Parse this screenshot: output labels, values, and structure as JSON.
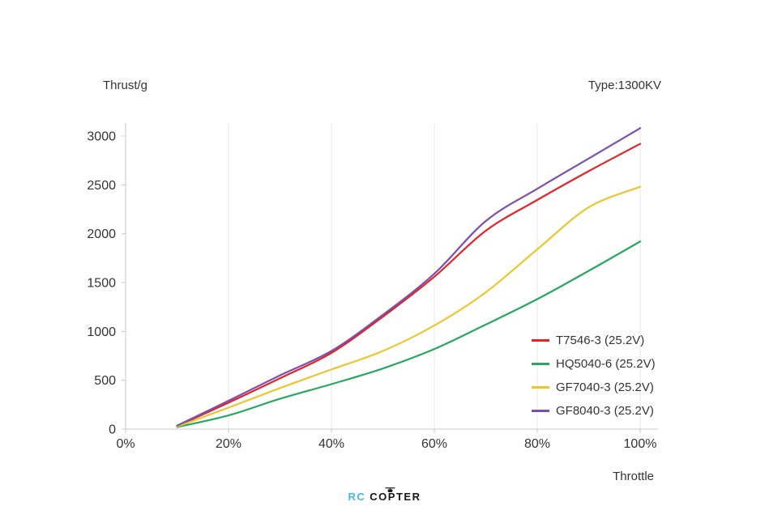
{
  "header": {
    "y_axis_title": "Thrust/g",
    "type_label": "Type:1300KV"
  },
  "footer": {
    "x_axis_title": "Throttle"
  },
  "watermark": {
    "rc": "RC",
    "copter": "COPTER"
  },
  "chart_data": {
    "type": "line",
    "title": "",
    "xlabel": "Throttle",
    "ylabel": "Thrust/g",
    "xlim": [
      0,
      100
    ],
    "ylim": [
      0,
      3000
    ],
    "x_ticks": [
      "0%",
      "20%",
      "40%",
      "60%",
      "80%",
      "100%"
    ],
    "x_tick_values": [
      0,
      20,
      40,
      60,
      80,
      100
    ],
    "y_ticks": [
      "0",
      "500",
      "1000",
      "1500",
      "2000",
      "2500",
      "3000"
    ],
    "y_tick_values": [
      0,
      500,
      1000,
      1500,
      2000,
      2500,
      3000
    ],
    "grid": "vertical-only",
    "grid_color": "#e7e7e7",
    "axis_color": "#c8c8c8",
    "tick_text_color": "#333333",
    "legend_position": "inside-bottom-right",
    "x": [
      10,
      20,
      30,
      40,
      50,
      60,
      70,
      80,
      90,
      100
    ],
    "series": [
      {
        "name": "T7546-3 (25.2V)",
        "color": "#e02428",
        "values": [
          30,
          270,
          520,
          780,
          1150,
          1560,
          2030,
          2345,
          2640,
          2920
        ]
      },
      {
        "name": "HQ5040-6 (25.2V)",
        "color": "#27a860",
        "values": [
          20,
          140,
          310,
          460,
          620,
          820,
          1070,
          1330,
          1620,
          1920
        ]
      },
      {
        "name": "GF7040-3 (25.2V)",
        "color": "#ecc52f",
        "values": [
          25,
          220,
          420,
          610,
          800,
          1060,
          1400,
          1840,
          2270,
          2480
        ]
      },
      {
        "name": "GF8040-3 (25.2V)",
        "color": "#7c4fae",
        "values": [
          35,
          290,
          550,
          800,
          1170,
          1590,
          2130,
          2460,
          2770,
          3080
        ]
      }
    ]
  }
}
